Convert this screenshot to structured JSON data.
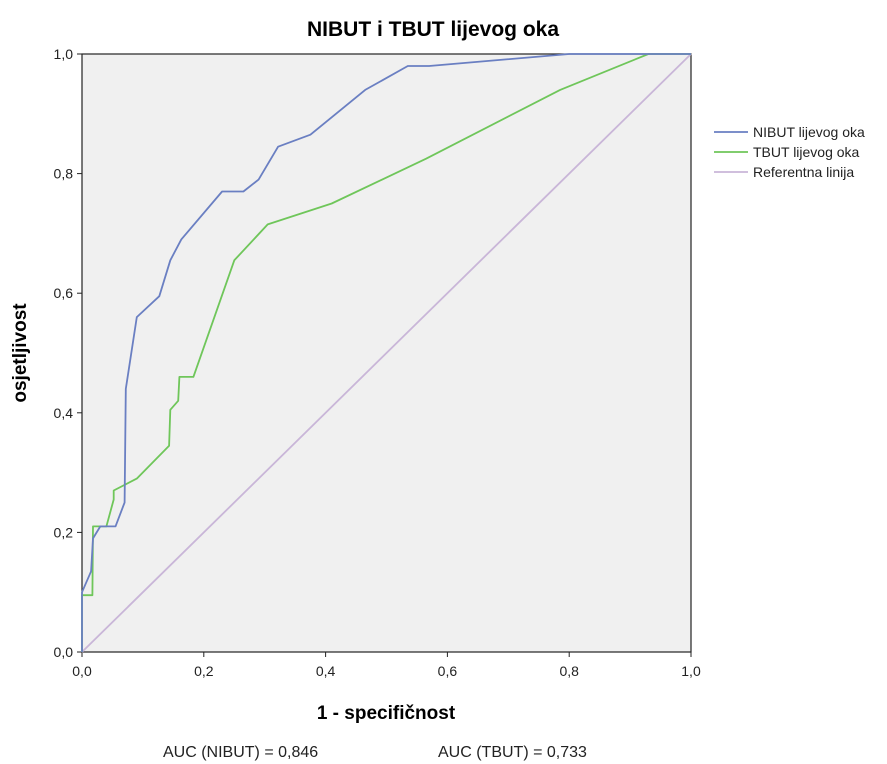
{
  "chart_data": {
    "type": "line",
    "title": "NIBUT i TBUT lijevog oka",
    "xlabel": "1 - specifičnost",
    "ylabel": "osjetljivost",
    "xlim": [
      0,
      1
    ],
    "ylim": [
      0,
      1
    ],
    "x_ticks": [
      "0,0",
      "0,2",
      "0,4",
      "0,6",
      "0,8",
      "1,0"
    ],
    "y_ticks": [
      "0,0",
      "0,2",
      "0,4",
      "0,6",
      "0,8",
      "1,0"
    ],
    "grid": false,
    "legend_position": "right",
    "series": [
      {
        "name": "NIBUT lijevog oka",
        "color": "#6a7fc2",
        "points": [
          [
            0,
            0
          ],
          [
            0,
            0.1
          ],
          [
            0.015,
            0.135
          ],
          [
            0.018,
            0.19
          ],
          [
            0.03,
            0.21
          ],
          [
            0.055,
            0.21
          ],
          [
            0.07,
            0.25
          ],
          [
            0.072,
            0.44
          ],
          [
            0.09,
            0.56
          ],
          [
            0.127,
            0.595
          ],
          [
            0.145,
            0.655
          ],
          [
            0.163,
            0.69
          ],
          [
            0.23,
            0.77
          ],
          [
            0.265,
            0.77
          ],
          [
            0.29,
            0.79
          ],
          [
            0.322,
            0.845
          ],
          [
            0.375,
            0.865
          ],
          [
            0.465,
            0.94
          ],
          [
            0.535,
            0.98
          ],
          [
            0.57,
            0.98
          ],
          [
            0.8,
            1.0
          ],
          [
            1.0,
            1.0
          ]
        ]
      },
      {
        "name": "TBUT lijevog oka",
        "color": "#6fc65a",
        "points": [
          [
            0,
            0
          ],
          [
            0,
            0.095
          ],
          [
            0.017,
            0.095
          ],
          [
            0.018,
            0.21
          ],
          [
            0.04,
            0.21
          ],
          [
            0.052,
            0.255
          ],
          [
            0.052,
            0.27
          ],
          [
            0.09,
            0.29
          ],
          [
            0.143,
            0.345
          ],
          [
            0.145,
            0.405
          ],
          [
            0.158,
            0.42
          ],
          [
            0.16,
            0.46
          ],
          [
            0.183,
            0.46
          ],
          [
            0.25,
            0.655
          ],
          [
            0.305,
            0.715
          ],
          [
            0.41,
            0.75
          ],
          [
            0.565,
            0.825
          ],
          [
            0.785,
            0.94
          ],
          [
            0.93,
            1.0
          ],
          [
            1.0,
            1.0
          ]
        ]
      },
      {
        "name": "Referentna linija",
        "color": "#c9b6d8",
        "points": [
          [
            0,
            0
          ],
          [
            1,
            1
          ]
        ]
      }
    ],
    "annotations": {
      "auc_nibut": "AUC (NIBUT) = 0,846",
      "auc_tbut": "AUC (TBUT) = 0,733"
    }
  }
}
